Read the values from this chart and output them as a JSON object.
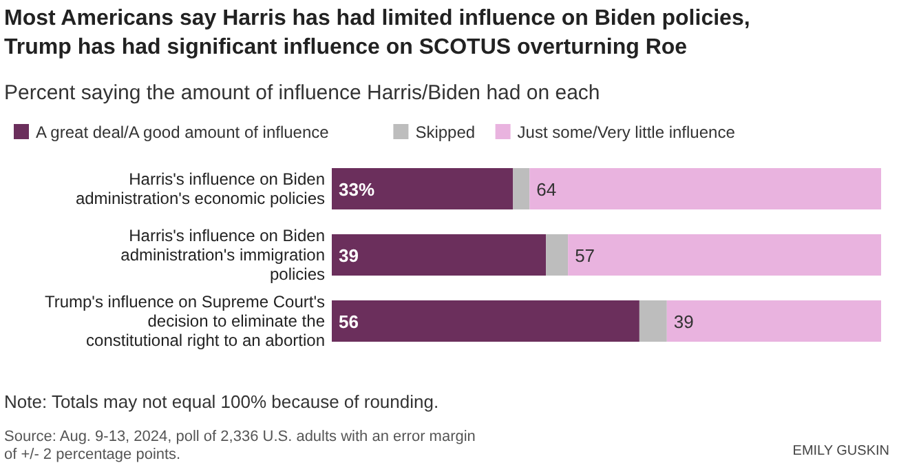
{
  "chart_data": {
    "type": "bar",
    "orientation": "horizontal",
    "stacked": true,
    "title": "Most Americans say Harris has had limited influence on Biden policies, Trump has had significant influence on SCOTUS overturning Roe",
    "subtitle": "Percent saying the amount of influence Harris/Biden had on each",
    "categories": [
      "Harris's influence on Biden administration's economic policies",
      "Harris's influence on Biden administration's immigration policies",
      "Trump's influence on Supreme Court's decision to eliminate the constitutional right to an abortion"
    ],
    "series": [
      {
        "name": "A great deal/A good amount of influence",
        "color": "#6b2f5c",
        "values": [
          33,
          39,
          56
        ],
        "value_labels": [
          "33%",
          "39",
          "56"
        ]
      },
      {
        "name": "Skipped",
        "color": "#bdbdbd",
        "values": [
          3,
          4,
          5
        ]
      },
      {
        "name": "Just some/Very little influence",
        "color": "#e9b3df",
        "values": [
          64,
          57,
          39
        ],
        "value_labels": [
          "64",
          "57",
          "39"
        ]
      }
    ],
    "xlim": [
      0,
      100
    ],
    "legend": "top",
    "grid": false,
    "annotations": [
      "Note: Totals may not equal 100% because of rounding.",
      "Source: Aug. 9-13, 2024, poll of 2,336 U.S. adults with an error margin of +/- 2 percentage points.",
      "EMILY GUSKIN"
    ]
  }
}
